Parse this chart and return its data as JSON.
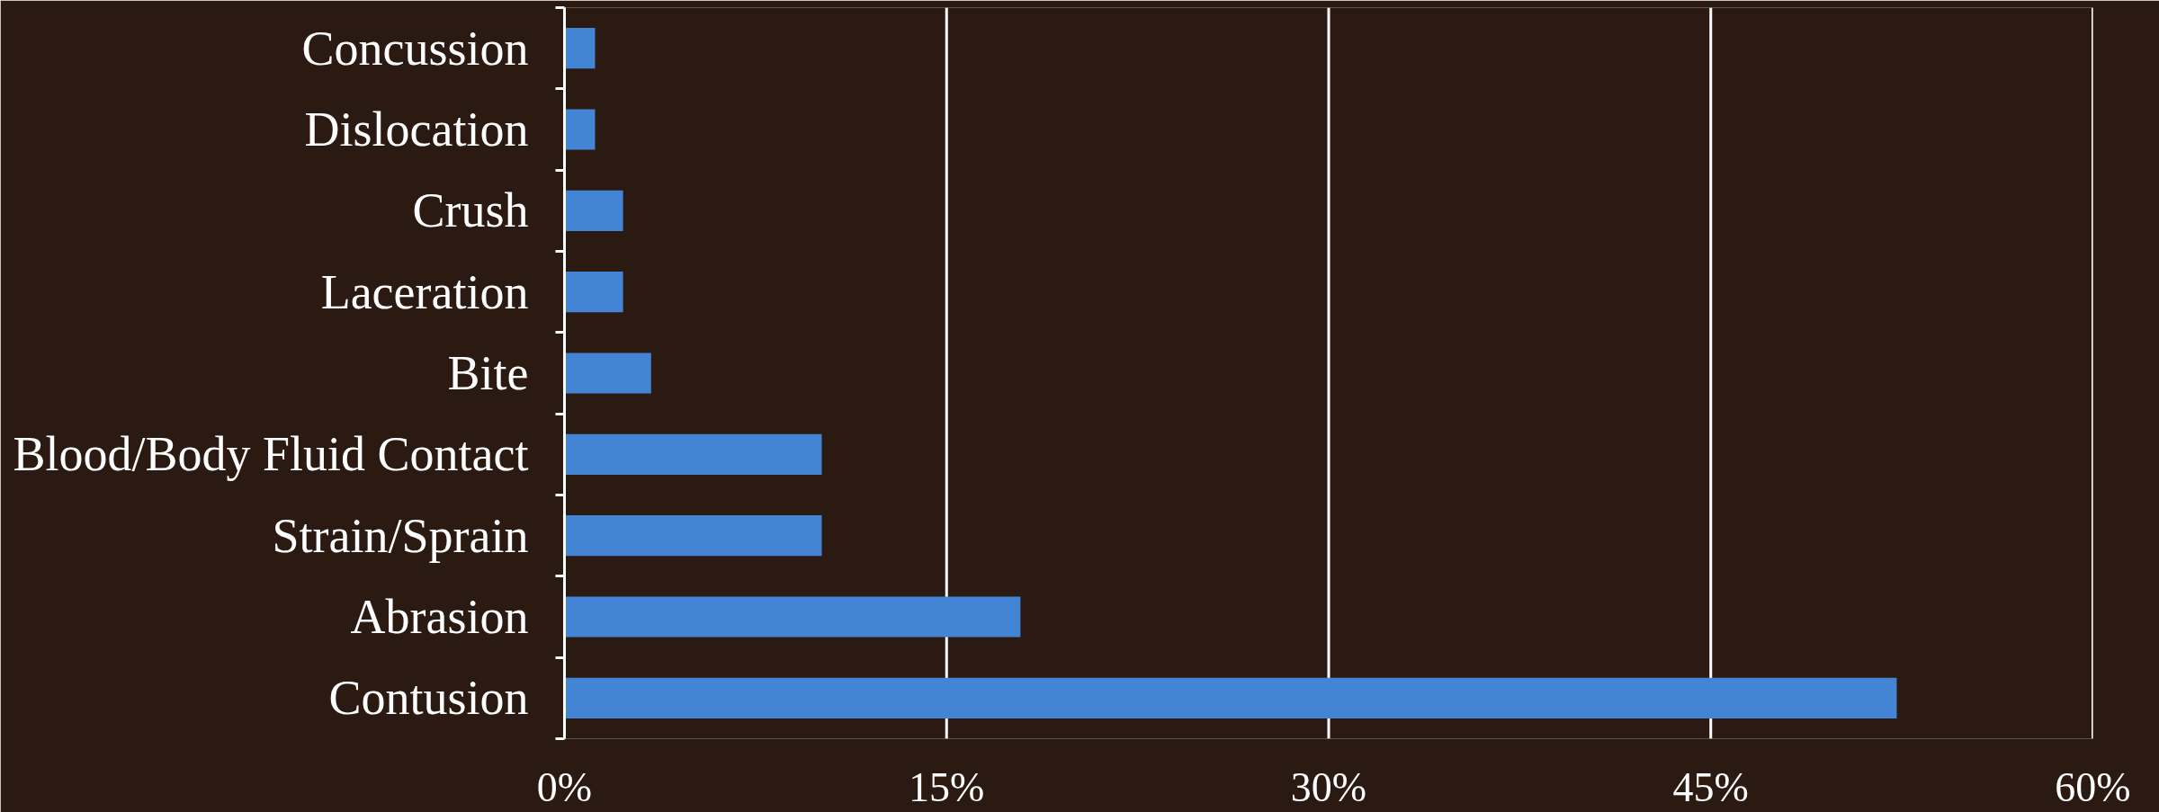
{
  "chart_data": {
    "type": "bar",
    "orientation": "horizontal",
    "categories": [
      "Concussion",
      "Dislocation",
      "Crush",
      "Laceration",
      "Bite",
      "Blood/Body Fluid Contact",
      "Strain/Sprain",
      "Abrasion",
      "Contusion"
    ],
    "values": [
      1.2,
      1.2,
      2.3,
      2.3,
      3.4,
      10.1,
      10.1,
      17.9,
      52.3
    ],
    "color": "#4384d4",
    "xlim": [
      0,
      60
    ],
    "xticks": [
      {
        "value": 0,
        "label": "0%"
      },
      {
        "value": 15,
        "label": "15%"
      },
      {
        "value": 30,
        "label": "30%"
      },
      {
        "value": 45,
        "label": "45%"
      },
      {
        "value": 60,
        "label": "60%"
      }
    ],
    "grid": "x"
  }
}
